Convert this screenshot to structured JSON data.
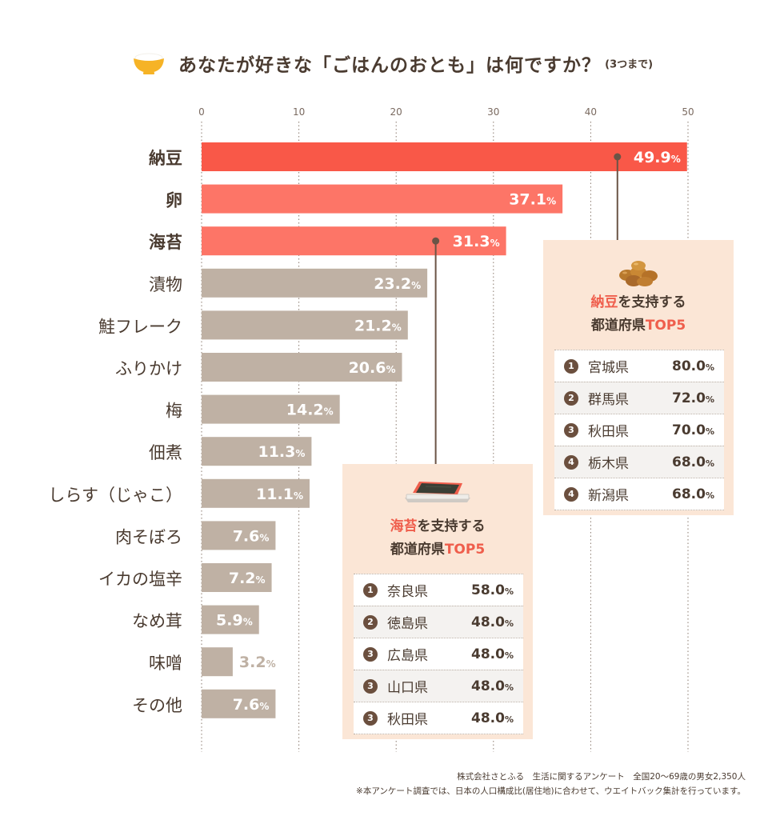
{
  "title": {
    "main": "あなたが好きな「ごはんのおとも」は何ですか？",
    "sub": "(3つまで)"
  },
  "chart_data": {
    "type": "bar",
    "orientation": "horizontal",
    "title": "あなたが好きな「ごはんのおとも」は何ですか？(3つまで)",
    "xlim": [
      0,
      50
    ],
    "xticks": [
      "0",
      "10",
      "20",
      "30",
      "40",
      "50"
    ],
    "unit": "%",
    "categories": [
      "納豆",
      "卵",
      "海苔",
      "漬物",
      "鮭フレーク",
      "ふりかけ",
      "梅",
      "佃煮",
      "しらす（じゃこ）",
      "肉そぼろ",
      "イカの塩辛",
      "なめ茸",
      "味噌",
      "その他"
    ],
    "values": [
      49.9,
      37.1,
      31.3,
      23.2,
      21.2,
      20.6,
      14.2,
      11.3,
      11.1,
      7.6,
      7.2,
      5.9,
      3.2,
      7.6
    ],
    "labels": [
      "49.9",
      "37.1",
      "31.3",
      "23.2",
      "21.2",
      "20.6",
      "14.2",
      "11.3",
      "11.1",
      "7.6",
      "7.2",
      "5.9",
      "3.2",
      "7.6"
    ],
    "highlight": [
      true,
      true,
      true,
      false,
      false,
      false,
      false,
      false,
      false,
      false,
      false,
      false,
      false,
      false
    ],
    "colors": {
      "top1": "#f95848",
      "top": "#fd7567",
      "other": "#bfb1a4",
      "label_inside": "#ffffff",
      "label_outside": "#bfb1a4",
      "category_text": "#4a3b30",
      "grid": "#8a7a6e",
      "axis_text": "#7a6a60",
      "connector": "#6b5446"
    }
  },
  "panels": {
    "natto": {
      "title_hl": "納豆",
      "title_rest": "を支持する",
      "title2_rest": "都道府県",
      "title2_hl": "TOP5",
      "rows": [
        {
          "rank": "1",
          "pref": "宮城県",
          "pct": "80.0",
          "unit": "%"
        },
        {
          "rank": "2",
          "pref": "群馬県",
          "pct": "72.0",
          "unit": "%"
        },
        {
          "rank": "3",
          "pref": "秋田県",
          "pct": "70.0",
          "unit": "%"
        },
        {
          "rank": "4",
          "pref": "栃木県",
          "pct": "68.0",
          "unit": "%"
        },
        {
          "rank": "4",
          "pref": "新潟県",
          "pct": "68.0",
          "unit": "%"
        }
      ]
    },
    "nori": {
      "title_hl": "海苔",
      "title_rest": "を支持する",
      "title2_rest": "都道府県",
      "title2_hl": "TOP5",
      "rows": [
        {
          "rank": "1",
          "pref": "奈良県",
          "pct": "58.0",
          "unit": "%"
        },
        {
          "rank": "2",
          "pref": "徳島県",
          "pct": "48.0",
          "unit": "%"
        },
        {
          "rank": "3",
          "pref": "広島県",
          "pct": "48.0",
          "unit": "%"
        },
        {
          "rank": "3",
          "pref": "山口県",
          "pct": "48.0",
          "unit": "%"
        },
        {
          "rank": "3",
          "pref": "秋田県",
          "pct": "48.0",
          "unit": "%"
        }
      ]
    }
  },
  "footer": {
    "line1": "株式会社さとふる　生活に関するアンケート　全国20〜69歳の男女2,350人",
    "line2": "※本アンケート調査では、日本の人口構成比(居住地)に合わせて、ウエイトバック集計を行っています。"
  }
}
